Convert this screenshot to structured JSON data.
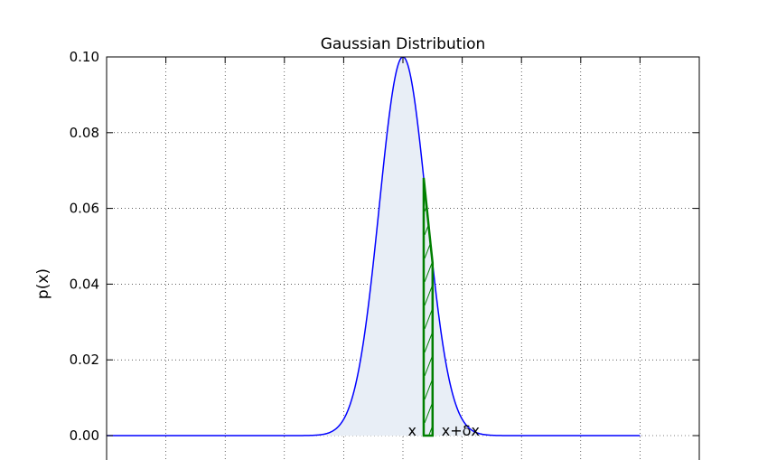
{
  "chart_data": {
    "type": "area",
    "title": "Gaussian Distribution",
    "xlabel": "",
    "ylabel": "p(x)",
    "xlim": [
      -60,
      40
    ],
    "ylim": [
      0,
      0.1
    ],
    "x_ticks": [
      -50,
      -40,
      -30,
      -20,
      -10,
      0,
      10,
      20,
      30
    ],
    "y_ticks": [
      0.0,
      0.02,
      0.04,
      0.06,
      0.08,
      0.1
    ],
    "y_tick_labels": [
      "0.00",
      "0.02",
      "0.04",
      "0.06",
      "0.08",
      "0.10"
    ],
    "grid": true,
    "grid_style": "dotted",
    "series": [
      {
        "mean": -10,
        "std_dev": 3.989,
        "x_range": [
          -60,
          30
        ],
        "line_color": "#0000ff",
        "fill_color": "#e8eef6"
      }
    ],
    "highlight": {
      "x_start": -6.5,
      "x_end": -5.0,
      "color": "#007f00",
      "hatch": "/",
      "labels": [
        "x",
        "x+δx"
      ]
    }
  }
}
